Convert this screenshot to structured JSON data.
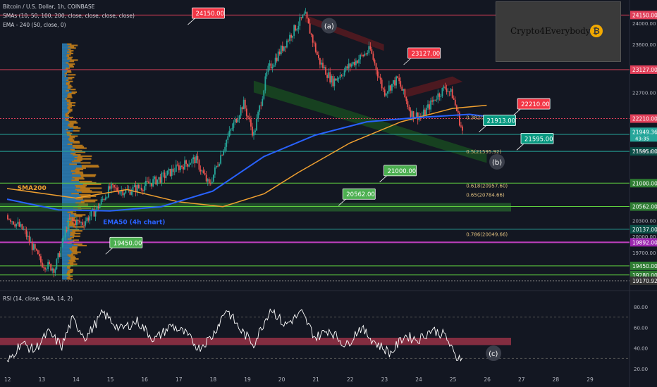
{
  "header": {
    "symbol": "Bitcoin / U.S. Dollar, 1h, COINBASE",
    "sma_legend": "SMAs (10, 50, 100, 200, close, close, close, close)",
    "ema_legend": "EMA - 240 (50, close, 0)",
    "rsi_legend": "RSI (14, close, SMA, 14, 2)"
  },
  "watermark": {
    "text": "Crypto4Everybody",
    "logo_glyph": "₿"
  },
  "colors": {
    "background": "#131722",
    "bull": "#26a69a",
    "bear": "#ef5350",
    "ema50": "#2962ff",
    "sma200": "#f0a030",
    "support_line": "#5fcf3f",
    "resistance_line": "#e0405a",
    "teal_line": "#26a69a",
    "volume_profile_up": "#2e86c1",
    "volume_profile_down": "#d68a1a",
    "rsi_line": "#ffffff",
    "rsi_band": "#e0405a",
    "label_red": "#f23645",
    "label_green": "#4caf50",
    "label_teal": "#089981",
    "watermark_bg": "#3a3a3a"
  },
  "chart_data": {
    "type": "line",
    "x_axis": {
      "tick_labels": [
        "12",
        "13",
        "14",
        "15",
        "16",
        "17",
        "18",
        "19",
        "20",
        "21",
        "22",
        "23",
        "24",
        "25",
        "26",
        "27",
        "28",
        "29"
      ]
    },
    "price_axis": {
      "tick_labels": [
        "24000.00",
        "23600.00",
        "22700.00",
        "21600.00",
        "20300.00",
        "20000.00",
        "19700.00"
      ],
      "range": [
        19000,
        24300
      ]
    },
    "price_series_samples": [
      {
        "x": 12.0,
        "price": 20400
      },
      {
        "x": 12.5,
        "price": 20100
      },
      {
        "x": 13.0,
        "price": 19500
      },
      {
        "x": 13.4,
        "price": 19400
      },
      {
        "x": 13.8,
        "price": 20300
      },
      {
        "x": 14.2,
        "price": 20250
      },
      {
        "x": 14.6,
        "price": 20500
      },
      {
        "x": 15.0,
        "price": 20900
      },
      {
        "x": 15.5,
        "price": 20850
      },
      {
        "x": 16.0,
        "price": 20950
      },
      {
        "x": 16.5,
        "price": 21100
      },
      {
        "x": 17.0,
        "price": 21300
      },
      {
        "x": 17.5,
        "price": 21450
      },
      {
        "x": 17.9,
        "price": 20950
      },
      {
        "x": 18.4,
        "price": 21800
      },
      {
        "x": 18.9,
        "price": 22500
      },
      {
        "x": 19.2,
        "price": 21900
      },
      {
        "x": 19.6,
        "price": 23100
      },
      {
        "x": 20.0,
        "price": 23500
      },
      {
        "x": 20.4,
        "price": 23900
      },
      {
        "x": 20.7,
        "price": 24150
      },
      {
        "x": 21.1,
        "price": 23300
      },
      {
        "x": 21.5,
        "price": 22900
      },
      {
        "x": 22.0,
        "price": 23200
      },
      {
        "x": 22.6,
        "price": 23500
      },
      {
        "x": 23.0,
        "price": 22700
      },
      {
        "x": 23.4,
        "price": 22950
      },
      {
        "x": 23.8,
        "price": 22300
      },
      {
        "x": 24.1,
        "price": 22250
      },
      {
        "x": 24.5,
        "price": 22600
      },
      {
        "x": 24.8,
        "price": 22800
      },
      {
        "x": 25.0,
        "price": 22650
      },
      {
        "x": 25.3,
        "price": 21949
      }
    ],
    "ema50_samples": [
      {
        "x": 12.0,
        "price": 20700
      },
      {
        "x": 13.5,
        "price": 20500
      },
      {
        "x": 15.0,
        "price": 20480
      },
      {
        "x": 16.5,
        "price": 20560
      },
      {
        "x": 18.0,
        "price": 20850
      },
      {
        "x": 19.5,
        "price": 21500
      },
      {
        "x": 21.0,
        "price": 21900
      },
      {
        "x": 22.5,
        "price": 22150
      },
      {
        "x": 24.0,
        "price": 22230
      },
      {
        "x": 25.5,
        "price": 22290
      },
      {
        "x": 26.0,
        "price": 22250
      }
    ],
    "sma200_samples": [
      {
        "x": 12.0,
        "price": 20900
      },
      {
        "x": 14.0,
        "price": 20720
      },
      {
        "x": 15.5,
        "price": 20880
      },
      {
        "x": 17.0,
        "price": 20650
      },
      {
        "x": 18.3,
        "price": 20560
      },
      {
        "x": 19.5,
        "price": 20800
      },
      {
        "x": 20.5,
        "price": 21200
      },
      {
        "x": 22.0,
        "price": 21750
      },
      {
        "x": 23.5,
        "price": 22150
      },
      {
        "x": 25.0,
        "price": 22400
      },
      {
        "x": 26.0,
        "price": 22460
      }
    ],
    "horizontal_levels": [
      {
        "price": 24150,
        "label": "24150.00",
        "kind": "resistance"
      },
      {
        "price": 23127,
        "label": "23127.00",
        "kind": "resistance"
      },
      {
        "price": 22210,
        "label": "22210.00",
        "kind": "resistance_dotted"
      },
      {
        "price": 21913,
        "label": "21913.00",
        "kind": "teal"
      },
      {
        "price": 21595,
        "label": "21595.00",
        "kind": "teal"
      },
      {
        "price": 21000,
        "label": "21000.00",
        "kind": "support"
      },
      {
        "price": 20562,
        "label": "20562.00",
        "kind": "support_zone"
      },
      {
        "price": 20137,
        "label": "20137.00",
        "kind": "teal"
      },
      {
        "price": 19892,
        "label": "19892.00",
        "kind": "purple"
      },
      {
        "price": 19450,
        "label": "19450.00",
        "kind": "support"
      },
      {
        "price": 19280,
        "label": "19280.00",
        "kind": "support"
      },
      {
        "price": 19170.92,
        "label": "19170.92",
        "kind": "dotted"
      }
    ],
    "current_price": {
      "price": 21949.36,
      "label": "21949.36",
      "countdown": "43:35"
    },
    "chart_labels": [
      {
        "text": "24150.00",
        "color": "red",
        "x": 17.4,
        "price": 24180
      },
      {
        "text": "23127.00",
        "color": "red",
        "x": 23.7,
        "price": 23430
      },
      {
        "text": "22210.00",
        "color": "red",
        "x": 26.9,
        "price": 22480
      },
      {
        "text": "21913.00",
        "color": "teal",
        "x": 25.9,
        "price": 22170
      },
      {
        "text": "21595.00",
        "color": "teal",
        "x": 27.0,
        "price": 21830
      },
      {
        "text": "21000.00",
        "color": "green",
        "x": 23.0,
        "price": 21230
      },
      {
        "text": "20562.00",
        "color": "green",
        "x": 21.8,
        "price": 20790
      },
      {
        "text": "19450.00",
        "color": "green",
        "x": 15.0,
        "price": 19880
      }
    ],
    "fib_levels": [
      {
        "text": "0.382(22235.51)",
        "price": 22236,
        "x": 25.4
      },
      {
        "text": "0.5(21595.92)",
        "price": 21596,
        "x": 25.4
      },
      {
        "text": "0.618(20957.60)",
        "price": 20958,
        "x": 25.4
      },
      {
        "text": "0.65(20784.66)",
        "price": 20785,
        "x": 25.4
      },
      {
        "text": "0.786(20049.66)",
        "price": 20050,
        "x": 25.4
      }
    ],
    "annotations": [
      {
        "text": "(a)",
        "x": 21.4,
        "price": 23950
      },
      {
        "text": "(b)",
        "x": 26.3,
        "price": 21400
      },
      {
        "text": "SMA200",
        "x": 12.3,
        "price": 20870
      },
      {
        "text": "EMA50 (4h chart)",
        "x": 14.8,
        "price": 20230
      }
    ],
    "rsi": {
      "ticks": [
        "80.00",
        "60.00",
        "40.00",
        "20.00"
      ],
      "range": [
        16,
        84
      ],
      "band": [
        47,
        50
      ],
      "wave_label": "(c)",
      "samples": [
        {
          "x": 12.0,
          "v": 25
        },
        {
          "x": 12.4,
          "v": 45
        },
        {
          "x": 12.8,
          "v": 38
        },
        {
          "x": 13.2,
          "v": 55
        },
        {
          "x": 13.6,
          "v": 42
        },
        {
          "x": 13.9,
          "v": 68
        },
        {
          "x": 14.3,
          "v": 50
        },
        {
          "x": 14.8,
          "v": 74
        },
        {
          "x": 15.3,
          "v": 58
        },
        {
          "x": 15.8,
          "v": 66
        },
        {
          "x": 16.3,
          "v": 48
        },
        {
          "x": 16.8,
          "v": 62
        },
        {
          "x": 17.2,
          "v": 54
        },
        {
          "x": 17.6,
          "v": 40
        },
        {
          "x": 18.0,
          "v": 52
        },
        {
          "x": 18.4,
          "v": 78
        },
        {
          "x": 18.8,
          "v": 58
        },
        {
          "x": 19.2,
          "v": 44
        },
        {
          "x": 19.7,
          "v": 79
        },
        {
          "x": 20.1,
          "v": 62
        },
        {
          "x": 20.6,
          "v": 74
        },
        {
          "x": 21.0,
          "v": 50
        },
        {
          "x": 21.4,
          "v": 58
        },
        {
          "x": 21.9,
          "v": 42
        },
        {
          "x": 22.3,
          "v": 60
        },
        {
          "x": 22.8,
          "v": 44
        },
        {
          "x": 23.2,
          "v": 35
        },
        {
          "x": 23.6,
          "v": 52
        },
        {
          "x": 24.0,
          "v": 48
        },
        {
          "x": 24.4,
          "v": 58
        },
        {
          "x": 24.8,
          "v": 52
        },
        {
          "x": 25.1,
          "v": 30
        },
        {
          "x": 25.3,
          "v": 34
        }
      ]
    }
  }
}
